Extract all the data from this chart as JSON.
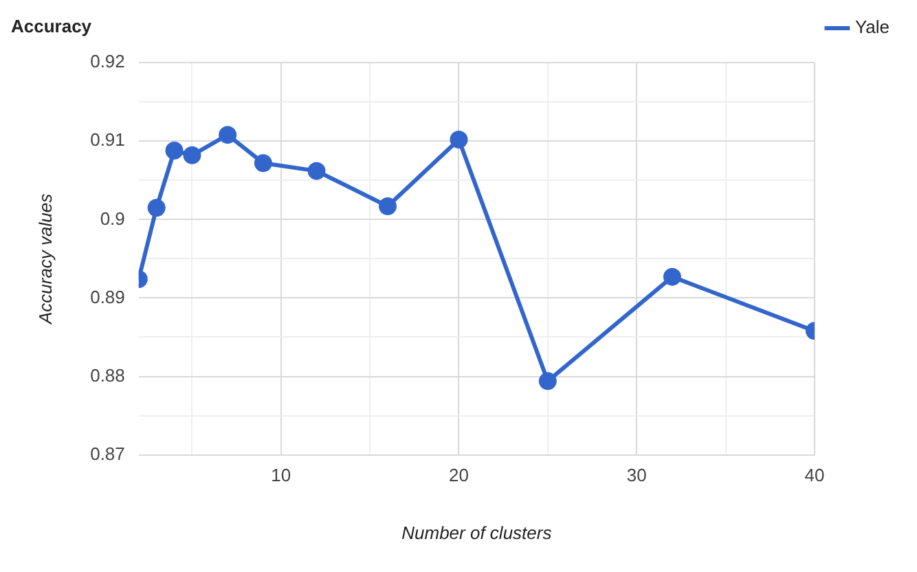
{
  "chart_data": {
    "type": "line",
    "title": "Accuracy",
    "xlabel": "Number of clusters",
    "ylabel": "Accuracy values",
    "x": [
      2,
      3,
      4,
      5,
      7,
      9,
      12,
      16,
      20,
      25,
      32,
      40
    ],
    "series": [
      {
        "name": "Yale",
        "color": "#3366cc",
        "values": [
          0.8924,
          0.9015,
          0.9088,
          0.9082,
          0.9108,
          0.9072,
          0.9062,
          0.9017,
          0.9102,
          0.8794,
          0.8927,
          0.8858
        ]
      }
    ],
    "xlim": [
      2,
      40
    ],
    "xticks": [
      {
        "value": 5,
        "label": null
      },
      10,
      {
        "value": 15,
        "label": null
      },
      20,
      {
        "value": 25,
        "label": null
      },
      30,
      {
        "value": 35,
        "label": null
      },
      40
    ],
    "ylim": [
      0.87,
      0.92
    ],
    "yticks": [
      0.87,
      {
        "value": 0.875,
        "label": null
      },
      0.88,
      {
        "value": 0.885,
        "label": null
      },
      0.89,
      {
        "value": 0.895,
        "label": null
      },
      0.9,
      {
        "value": 0.905,
        "label": null
      },
      0.91,
      {
        "value": 0.915,
        "label": null
      },
      0.92
    ],
    "grid": true,
    "legend": "top right",
    "marker": "circle",
    "line_style": "solid"
  }
}
